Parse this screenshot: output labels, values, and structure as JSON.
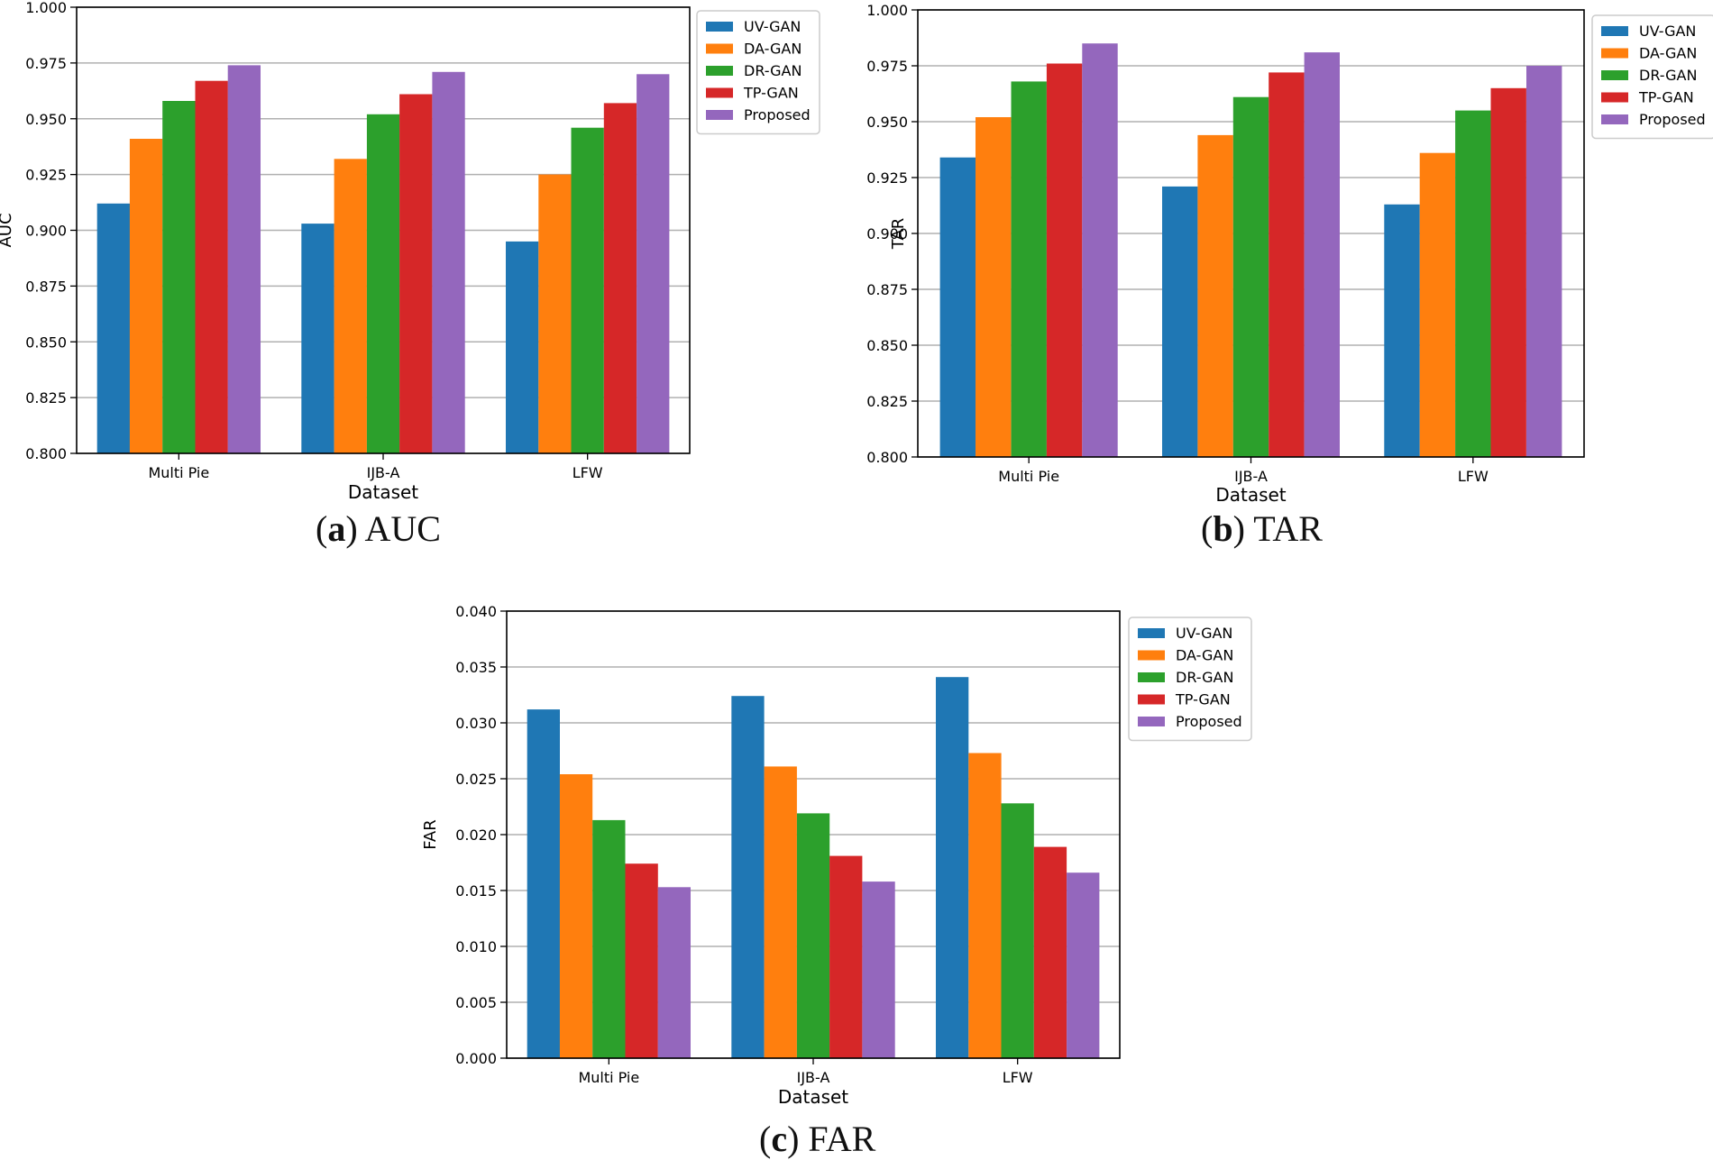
{
  "chart_data": [
    {
      "type": "bar",
      "categories": [
        "Multi Pie",
        "IJB-A",
        "LFW"
      ],
      "series": [
        {
          "name": "UV-GAN",
          "values": [
            0.912,
            0.903,
            0.895
          ]
        },
        {
          "name": "DA-GAN",
          "values": [
            0.941,
            0.932,
            0.925
          ]
        },
        {
          "name": "DR-GAN",
          "values": [
            0.958,
            0.952,
            0.946
          ]
        },
        {
          "name": "TP-GAN",
          "values": [
            0.967,
            0.961,
            0.957
          ]
        },
        {
          "name": "Proposed",
          "values": [
            0.974,
            0.971,
            0.97
          ]
        }
      ],
      "xlabel": "Dataset",
      "ylabel": "AUC",
      "ylim": [
        0.8,
        1.0
      ],
      "yticks": [
        "0.800",
        "0.825",
        "0.850",
        "0.875",
        "0.900",
        "0.925",
        "0.950",
        "0.975",
        "1.000"
      ],
      "grid": true,
      "legend": "top-right outside",
      "caption_letter": "a",
      "caption_text": "AUC"
    },
    {
      "type": "bar",
      "categories": [
        "Multi Pie",
        "IJB-A",
        "LFW"
      ],
      "series": [
        {
          "name": "UV-GAN",
          "values": [
            0.934,
            0.921,
            0.913
          ]
        },
        {
          "name": "DA-GAN",
          "values": [
            0.952,
            0.944,
            0.936
          ]
        },
        {
          "name": "DR-GAN",
          "values": [
            0.968,
            0.961,
            0.955
          ]
        },
        {
          "name": "TP-GAN",
          "values": [
            0.976,
            0.972,
            0.965
          ]
        },
        {
          "name": "Proposed",
          "values": [
            0.985,
            0.981,
            0.975
          ]
        }
      ],
      "xlabel": "Dataset",
      "ylabel": "TAR",
      "ylim": [
        0.8,
        1.0
      ],
      "yticks": [
        "0.800",
        "0.825",
        "0.850",
        "0.875",
        "0.900",
        "0.925",
        "0.950",
        "0.975",
        "1.000"
      ],
      "grid": true,
      "legend": "top-right outside",
      "caption_letter": "b",
      "caption_text": "TAR"
    },
    {
      "type": "bar",
      "categories": [
        "Multi Pie",
        "IJB-A",
        "LFW"
      ],
      "series": [
        {
          "name": "UV-GAN",
          "values": [
            0.0312,
            0.0324,
            0.0341
          ]
        },
        {
          "name": "DA-GAN",
          "values": [
            0.0254,
            0.0261,
            0.0273
          ]
        },
        {
          "name": "DR-GAN",
          "values": [
            0.0213,
            0.0219,
            0.0228
          ]
        },
        {
          "name": "TP-GAN",
          "values": [
            0.0174,
            0.0181,
            0.0189
          ]
        },
        {
          "name": "Proposed",
          "values": [
            0.0153,
            0.0158,
            0.0166
          ]
        }
      ],
      "xlabel": "Dataset",
      "ylabel": "FAR",
      "ylim": [
        0.0,
        0.04
      ],
      "yticks": [
        "0.000",
        "0.005",
        "0.010",
        "0.015",
        "0.020",
        "0.025",
        "0.030",
        "0.035",
        "0.040"
      ],
      "grid": true,
      "legend": "top-right outside",
      "caption_letter": "c",
      "caption_text": "FAR"
    }
  ],
  "colors": {
    "UV-GAN": "#1f77b4",
    "DA-GAN": "#ff7f0e",
    "DR-GAN": "#2ca02c",
    "TP-GAN": "#d62728",
    "Proposed": "#9467bd"
  }
}
